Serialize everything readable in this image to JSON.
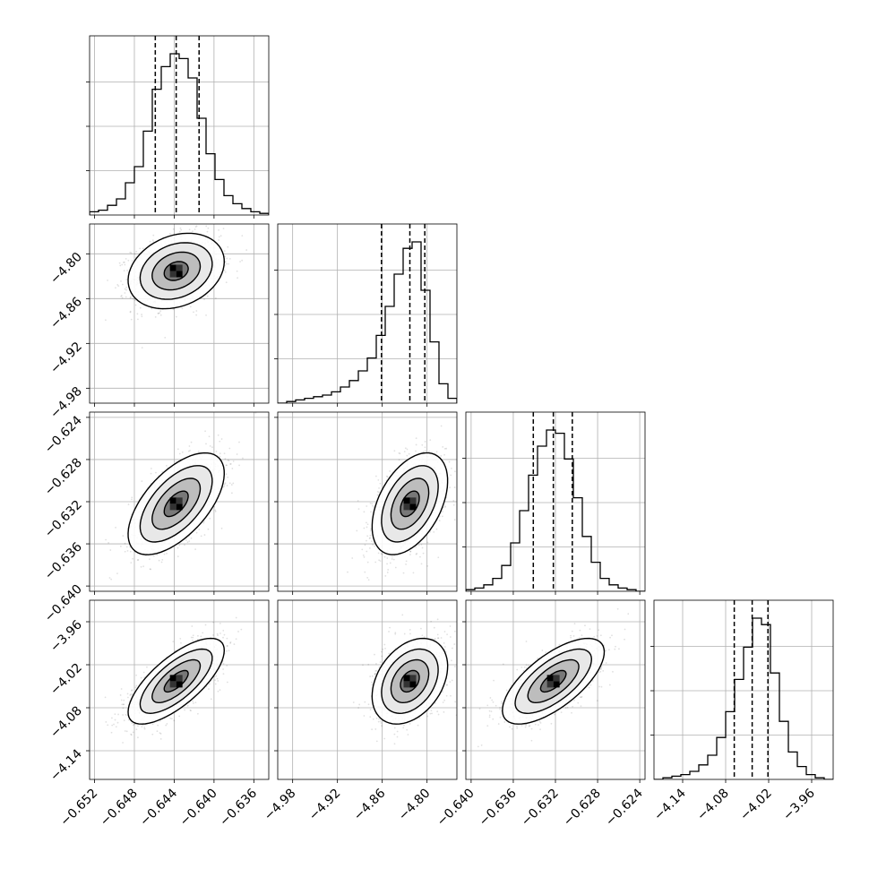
{
  "chart_data": {
    "type": "corner",
    "parameters": [
      {
        "ticks": [
          -0.652,
          -0.648,
          -0.644,
          -0.64,
          -0.636
        ],
        "tick_labels": [
          "−0.652",
          "−0.648",
          "−0.644",
          "−0.640",
          "−0.636"
        ],
        "range": [
          -0.6525,
          -0.6345
        ],
        "median": -0.6438,
        "sigma": 0.0021,
        "quantiles": [
          -0.6459,
          -0.6438,
          -0.6415
        ],
        "histogram": {
          "edges": [
            -0.6525,
            -0.6516,
            -0.6507,
            -0.6498,
            -0.6489,
            -0.648,
            -0.6471,
            -0.6462,
            -0.6453,
            -0.6444,
            -0.6435,
            -0.6426,
            -0.6417,
            -0.6408,
            -0.6399,
            -0.639,
            -0.6381,
            -0.6372,
            -0.6363,
            -0.6354,
            -0.6345
          ],
          "counts": [
            0.02,
            0.03,
            0.06,
            0.1,
            0.2,
            0.3,
            0.52,
            0.78,
            0.92,
            1.0,
            0.97,
            0.85,
            0.6,
            0.38,
            0.22,
            0.12,
            0.07,
            0.04,
            0.02,
            0.01
          ]
        }
      },
      {
        "ticks": [
          -4.98,
          -4.92,
          -4.86,
          -4.8
        ],
        "tick_labels": [
          "−4.98",
          "−4.92",
          "−4.86",
          "−4.80"
        ],
        "range": [
          -5.0,
          -4.76
        ],
        "median": -4.823,
        "sigma": 0.022,
        "quantiles": [
          -4.861,
          -4.823,
          -4.803
        ],
        "histogram": {
          "edges": [
            -5.0,
            -4.988,
            -4.976,
            -4.964,
            -4.952,
            -4.94,
            -4.928,
            -4.916,
            -4.904,
            -4.892,
            -4.88,
            -4.868,
            -4.856,
            -4.844,
            -4.832,
            -4.82,
            -4.808,
            -4.796,
            -4.784,
            -4.772,
            -4.76
          ],
          "counts": [
            0.0,
            0.01,
            0.02,
            0.03,
            0.04,
            0.05,
            0.07,
            0.1,
            0.14,
            0.2,
            0.28,
            0.42,
            0.6,
            0.8,
            0.96,
            1.0,
            0.7,
            0.38,
            0.12,
            0.03
          ]
        }
      },
      {
        "ticks": [
          -0.64,
          -0.636,
          -0.632,
          -0.628,
          -0.624
        ],
        "tick_labels": [
          "−0.640",
          "−0.636",
          "−0.632",
          "−0.628",
          "−0.624"
        ],
        "range": [
          -0.6405,
          -0.6235
        ],
        "median": -0.6322,
        "sigma": 0.0021,
        "quantiles": [
          -0.6341,
          -0.6322,
          -0.6304
        ],
        "histogram": {
          "edges": [
            -0.6405,
            -0.63965,
            -0.6388,
            -0.63795,
            -0.6371,
            -0.63625,
            -0.6354,
            -0.63455,
            -0.6337,
            -0.63285,
            -0.632,
            -0.63115,
            -0.6303,
            -0.62945,
            -0.6286,
            -0.62775,
            -0.6269,
            -0.62605,
            -0.6252,
            -0.62435,
            -0.6235
          ],
          "counts": [
            0.01,
            0.02,
            0.04,
            0.08,
            0.16,
            0.3,
            0.5,
            0.72,
            0.9,
            1.0,
            0.98,
            0.82,
            0.58,
            0.34,
            0.18,
            0.08,
            0.04,
            0.02,
            0.01,
            0.0
          ]
        }
      },
      {
        "ticks": [
          -4.14,
          -4.08,
          -4.02,
          -3.96
        ],
        "tick_labels": [
          "−4.14",
          "−4.08",
          "−4.02",
          "−3.96"
        ],
        "range": [
          -4.18,
          -3.93
        ],
        "median": -4.043,
        "sigma": 0.026,
        "quantiles": [
          -4.068,
          -4.043,
          -4.021
        ],
        "histogram": {
          "edges": [
            -4.18,
            -4.1675,
            -4.155,
            -4.1425,
            -4.13,
            -4.1175,
            -4.105,
            -4.0925,
            -4.08,
            -4.0675,
            -4.055,
            -4.0425,
            -4.03,
            -4.0175,
            -4.005,
            -3.9925,
            -3.98,
            -3.9675,
            -3.955,
            -3.9425,
            -3.93
          ],
          "counts": [
            0.0,
            0.01,
            0.02,
            0.03,
            0.05,
            0.09,
            0.15,
            0.26,
            0.42,
            0.62,
            0.82,
            1.0,
            0.96,
            0.66,
            0.36,
            0.17,
            0.08,
            0.03,
            0.01,
            0.0
          ]
        }
      }
    ],
    "pairs": [
      {
        "x": 0,
        "y": 1,
        "center": [
          -0.6438,
          -4.823
        ],
        "rho": 0.25
      },
      {
        "x": 0,
        "y": 2,
        "center": [
          -0.6438,
          -0.6322
        ],
        "rho": 0.6
      },
      {
        "x": 1,
        "y": 2,
        "center": [
          -4.823,
          -0.6322
        ],
        "rho": 0.45
      },
      {
        "x": 0,
        "y": 3,
        "center": [
          -0.6438,
          -4.043
        ],
        "rho": 0.72
      },
      {
        "x": 1,
        "y": 3,
        "center": [
          -4.823,
          -4.043
        ],
        "rho": 0.35
      },
      {
        "x": 2,
        "y": 3,
        "center": [
          -0.6322,
          -4.043
        ],
        "rho": 0.68
      }
    ],
    "contour_levels_sigma": [
      0.5,
      1.0,
      1.5,
      2.0
    ],
    "grid": true
  }
}
